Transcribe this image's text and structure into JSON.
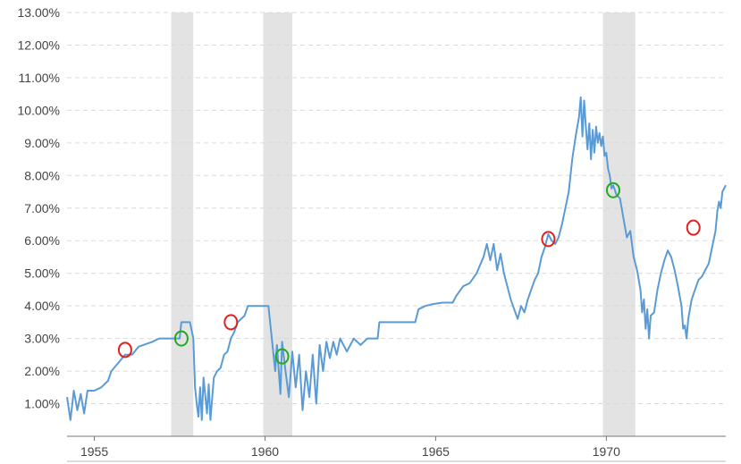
{
  "chart_data": {
    "type": "line",
    "title": "",
    "xlabel": "",
    "ylabel": "",
    "grid": true,
    "line_color": "#5b9bd5",
    "recession_color": "#e3e3e3",
    "xlim": [
      1954.2,
      1973.5
    ],
    "ylim": [
      0,
      13
    ],
    "y_ticks": [
      1,
      2,
      3,
      4,
      5,
      6,
      7,
      8,
      9,
      10,
      11,
      12,
      13
    ],
    "y_tick_labels": [
      "1.00%",
      "2.00%",
      "3.00%",
      "4.00%",
      "5.00%",
      "6.00%",
      "7.00%",
      "8.00%",
      "9.00%",
      "10.00%",
      "11.00%",
      "12.00%",
      "13.00%"
    ],
    "x_ticks": [
      1955,
      1960,
      1965,
      1970
    ],
    "x_tick_labels": [
      "1955",
      "1960",
      "1965",
      "1970"
    ],
    "recessions": [
      {
        "start": 1957.25,
        "end": 1957.9
      },
      {
        "start": 1959.95,
        "end": 1960.8
      },
      {
        "start": 1969.9,
        "end": 1970.85
      }
    ],
    "series": [
      {
        "values": [
          [
            1954.2,
            1.2
          ],
          [
            1954.3,
            0.5
          ],
          [
            1954.4,
            1.4
          ],
          [
            1954.5,
            0.8
          ],
          [
            1954.6,
            1.3
          ],
          [
            1954.7,
            0.7
          ],
          [
            1954.8,
            1.4
          ],
          [
            1955.0,
            1.4
          ],
          [
            1955.2,
            1.5
          ],
          [
            1955.4,
            1.7
          ],
          [
            1955.5,
            2.0
          ],
          [
            1955.7,
            2.25
          ],
          [
            1955.9,
            2.5
          ],
          [
            1956.1,
            2.5
          ],
          [
            1956.3,
            2.75
          ],
          [
            1956.7,
            2.9
          ],
          [
            1956.9,
            3.0
          ],
          [
            1957.5,
            3.0
          ],
          [
            1957.55,
            3.5
          ],
          [
            1957.8,
            3.5
          ],
          [
            1957.9,
            3.0
          ],
          [
            1957.95,
            1.5
          ],
          [
            1958.0,
            1.0
          ],
          [
            1958.05,
            0.6
          ],
          [
            1958.1,
            1.5
          ],
          [
            1958.15,
            0.5
          ],
          [
            1958.2,
            1.8
          ],
          [
            1958.3,
            0.7
          ],
          [
            1958.35,
            1.6
          ],
          [
            1958.4,
            0.5
          ],
          [
            1958.5,
            1.8
          ],
          [
            1958.6,
            2.0
          ],
          [
            1958.7,
            2.1
          ],
          [
            1958.8,
            2.5
          ],
          [
            1958.9,
            2.6
          ],
          [
            1959.0,
            3.0
          ],
          [
            1959.1,
            3.2
          ],
          [
            1959.2,
            3.5
          ],
          [
            1959.4,
            3.7
          ],
          [
            1959.5,
            4.0
          ],
          [
            1960.1,
            4.0
          ],
          [
            1960.15,
            3.5
          ],
          [
            1960.2,
            3.0
          ],
          [
            1960.3,
            2.0
          ],
          [
            1960.35,
            2.8
          ],
          [
            1960.45,
            1.3
          ],
          [
            1960.5,
            2.9
          ],
          [
            1960.6,
            2.0
          ],
          [
            1960.7,
            1.2
          ],
          [
            1960.8,
            2.6
          ],
          [
            1960.9,
            1.5
          ],
          [
            1961.0,
            2.5
          ],
          [
            1961.1,
            0.8
          ],
          [
            1961.2,
            2.0
          ],
          [
            1961.3,
            1.2
          ],
          [
            1961.4,
            2.5
          ],
          [
            1961.5,
            1.0
          ],
          [
            1961.6,
            2.8
          ],
          [
            1961.7,
            2.0
          ],
          [
            1961.8,
            2.9
          ],
          [
            1961.9,
            2.4
          ],
          [
            1962.0,
            2.9
          ],
          [
            1962.1,
            2.5
          ],
          [
            1962.2,
            3.0
          ],
          [
            1962.4,
            2.6
          ],
          [
            1962.6,
            3.0
          ],
          [
            1962.8,
            2.8
          ],
          [
            1963.0,
            3.0
          ],
          [
            1963.3,
            3.0
          ],
          [
            1963.35,
            3.5
          ],
          [
            1963.8,
            3.5
          ],
          [
            1964.0,
            3.5
          ],
          [
            1964.4,
            3.5
          ],
          [
            1964.5,
            3.9
          ],
          [
            1964.7,
            4.0
          ],
          [
            1964.9,
            4.05
          ],
          [
            1965.2,
            4.1
          ],
          [
            1965.5,
            4.1
          ],
          [
            1965.6,
            4.3
          ],
          [
            1965.8,
            4.6
          ],
          [
            1966.0,
            4.7
          ],
          [
            1966.2,
            5.0
          ],
          [
            1966.4,
            5.5
          ],
          [
            1966.5,
            5.9
          ],
          [
            1966.6,
            5.4
          ],
          [
            1966.7,
            5.9
          ],
          [
            1966.8,
            5.1
          ],
          [
            1966.9,
            5.6
          ],
          [
            1967.0,
            5.0
          ],
          [
            1967.1,
            4.6
          ],
          [
            1967.2,
            4.2
          ],
          [
            1967.3,
            3.9
          ],
          [
            1967.4,
            3.6
          ],
          [
            1967.5,
            4.0
          ],
          [
            1967.6,
            3.8
          ],
          [
            1967.7,
            4.2
          ],
          [
            1967.8,
            4.5
          ],
          [
            1967.9,
            4.8
          ],
          [
            1968.0,
            5.0
          ],
          [
            1968.1,
            5.5
          ],
          [
            1968.2,
            5.8
          ],
          [
            1968.3,
            6.2
          ],
          [
            1968.4,
            6.0
          ],
          [
            1968.5,
            5.9
          ],
          [
            1968.6,
            6.1
          ],
          [
            1968.7,
            6.5
          ],
          [
            1968.8,
            7.0
          ],
          [
            1968.9,
            7.5
          ],
          [
            1969.0,
            8.5
          ],
          [
            1969.1,
            9.2
          ],
          [
            1969.2,
            9.8
          ],
          [
            1969.25,
            10.4
          ],
          [
            1969.3,
            9.2
          ],
          [
            1969.35,
            10.3
          ],
          [
            1969.4,
            9.5
          ],
          [
            1969.45,
            8.8
          ],
          [
            1969.5,
            9.6
          ],
          [
            1969.55,
            8.5
          ],
          [
            1969.6,
            9.4
          ],
          [
            1969.65,
            8.7
          ],
          [
            1969.7,
            9.5
          ],
          [
            1969.75,
            9.0
          ],
          [
            1969.8,
            9.3
          ],
          [
            1969.85,
            8.9
          ],
          [
            1969.9,
            9.2
          ],
          [
            1969.95,
            8.6
          ],
          [
            1970.0,
            8.7
          ],
          [
            1970.05,
            8.2
          ],
          [
            1970.1,
            8.0
          ],
          [
            1970.15,
            7.6
          ],
          [
            1970.2,
            7.7
          ],
          [
            1970.3,
            7.4
          ],
          [
            1970.4,
            7.3
          ],
          [
            1970.5,
            6.7
          ],
          [
            1970.6,
            6.1
          ],
          [
            1970.7,
            6.3
          ],
          [
            1970.8,
            5.5
          ],
          [
            1970.9,
            5.1
          ],
          [
            1971.0,
            4.5
          ],
          [
            1971.05,
            3.8
          ],
          [
            1971.1,
            4.2
          ],
          [
            1971.15,
            3.3
          ],
          [
            1971.2,
            3.9
          ],
          [
            1971.25,
            3.0
          ],
          [
            1971.3,
            3.7
          ],
          [
            1971.4,
            3.8
          ],
          [
            1971.5,
            4.5
          ],
          [
            1971.6,
            5.0
          ],
          [
            1971.7,
            5.4
          ],
          [
            1971.8,
            5.7
          ],
          [
            1971.9,
            5.5
          ],
          [
            1972.0,
            5.1
          ],
          [
            1972.1,
            4.6
          ],
          [
            1972.2,
            4.0
          ],
          [
            1972.25,
            3.3
          ],
          [
            1972.3,
            3.4
          ],
          [
            1972.35,
            3.0
          ],
          [
            1972.4,
            3.6
          ],
          [
            1972.5,
            4.2
          ],
          [
            1972.6,
            4.5
          ],
          [
            1972.7,
            4.8
          ],
          [
            1972.8,
            4.9
          ],
          [
            1972.9,
            5.1
          ],
          [
            1973.0,
            5.3
          ],
          [
            1973.1,
            5.8
          ],
          [
            1973.2,
            6.3
          ],
          [
            1973.25,
            6.9
          ],
          [
            1973.3,
            7.2
          ],
          [
            1973.35,
            7.0
          ],
          [
            1973.4,
            7.5
          ],
          [
            1973.5,
            7.7
          ]
        ]
      }
    ],
    "annotations": [
      {
        "x": 1955.9,
        "y": 2.65,
        "color": "#e02020"
      },
      {
        "x": 1957.55,
        "y": 3.0,
        "color": "#22aa22"
      },
      {
        "x": 1959.0,
        "y": 3.5,
        "color": "#e02020"
      },
      {
        "x": 1960.5,
        "y": 2.45,
        "color": "#22aa22"
      },
      {
        "x": 1968.3,
        "y": 6.05,
        "color": "#e02020"
      },
      {
        "x": 1970.2,
        "y": 7.55,
        "color": "#22aa22"
      },
      {
        "x": 1972.55,
        "y": 6.4,
        "color": "#e02020"
      }
    ]
  }
}
